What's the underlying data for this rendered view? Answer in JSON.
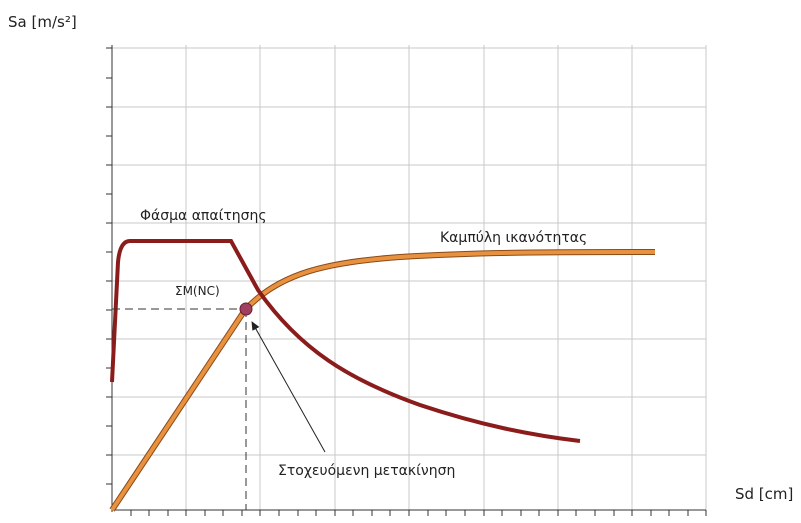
{
  "axes": {
    "y_label": "Sa [m/s²]",
    "x_label": "Sd [cm]"
  },
  "curves": {
    "demand_label": "Φάσμα απαίτησης",
    "capacity_label": "Καμπύλη ικανότητας"
  },
  "point": {
    "label": "ΣM(NC)"
  },
  "annotation": {
    "label": "Στοχευόμενη μετακίνηση"
  }
}
